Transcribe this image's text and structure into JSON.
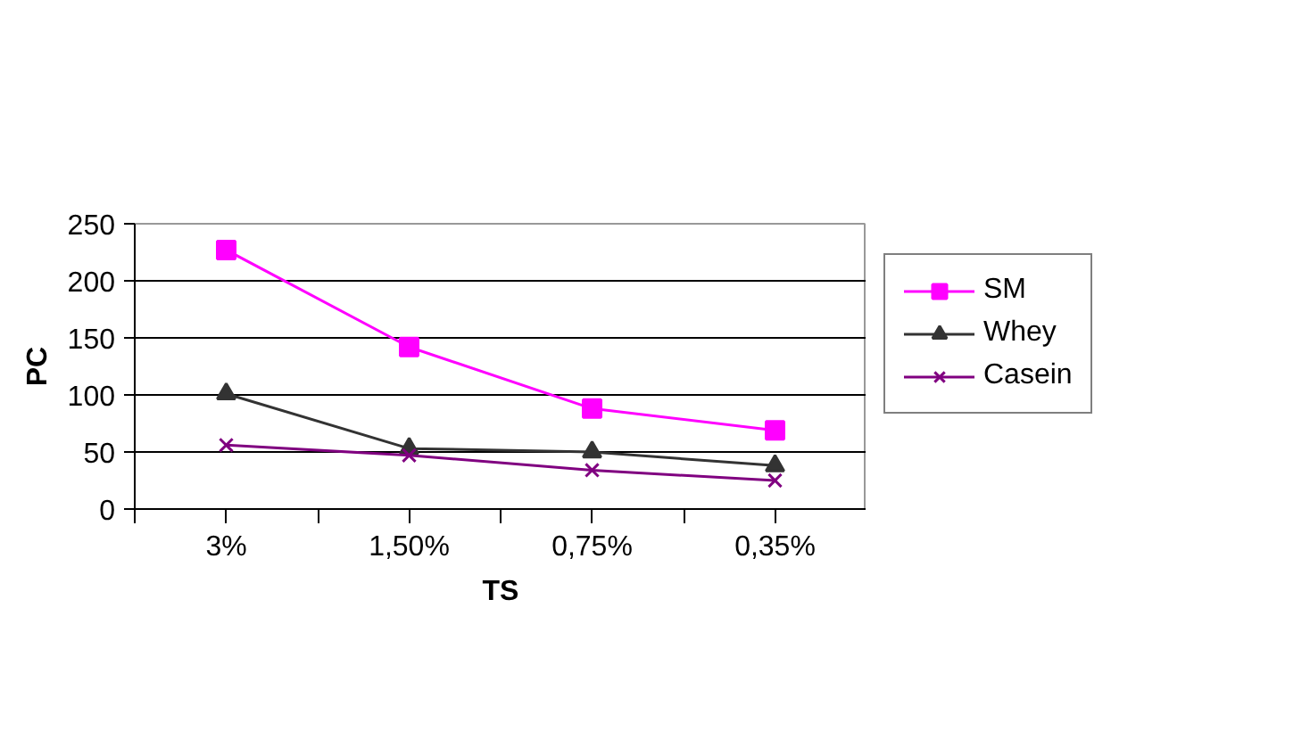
{
  "chart_data": {
    "type": "line",
    "xlabel": "TS",
    "ylabel": "PC",
    "categories": [
      "3%",
      "1,50%",
      "0,75%",
      "0,35%"
    ],
    "series": [
      {
        "name": "SM",
        "color": "#ff00ff",
        "marker": "square",
        "values": [
          227,
          142,
          88,
          69
        ]
      },
      {
        "name": "Whey",
        "color": "#333333",
        "marker": "triangle",
        "values": [
          101,
          53,
          50,
          38
        ]
      },
      {
        "name": "Casein",
        "color": "#800080",
        "marker": "cross",
        "values": [
          56,
          47,
          34,
          25
        ]
      }
    ],
    "ylim": [
      0,
      250
    ],
    "yticks": [
      0,
      50,
      100,
      150,
      200,
      250
    ],
    "grid": "y",
    "legend": "right",
    "line_style": "solid"
  }
}
